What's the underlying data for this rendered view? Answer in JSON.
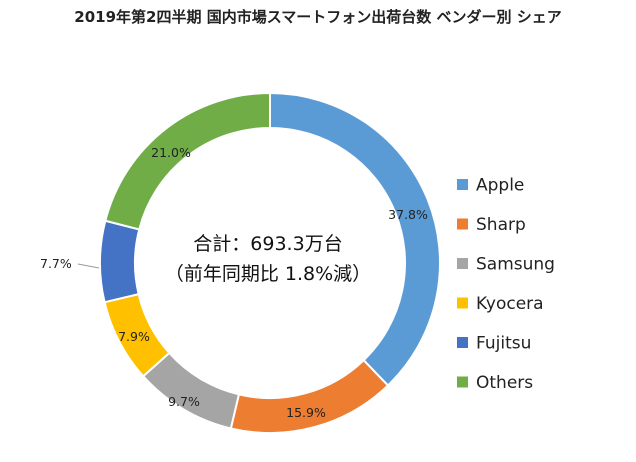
{
  "chart_data": {
    "type": "pie",
    "title": "2019年第2四半期 国内市場スマートフォン出荷台数 ベンダー別 シェア",
    "center_text": [
      "合計：693.3万台",
      "（前年同期比 1.8%減）"
    ],
    "unit": "%",
    "legend_position": "right",
    "slices": [
      {
        "name": "Apple",
        "value": 37.8,
        "label": "37.8%",
        "color": "#5B9BD5"
      },
      {
        "name": "Sharp",
        "value": 15.9,
        "label": "15.9%",
        "color": "#ED7D31"
      },
      {
        "name": "Samsung",
        "value": 9.7,
        "label": "9.7%",
        "color": "#A5A5A5"
      },
      {
        "name": "Kyocera",
        "value": 7.9,
        "label": "7.9%",
        "color": "#FFC000"
      },
      {
        "name": "Fujitsu",
        "value": 7.7,
        "label": "7.7%",
        "color": "#4472C4"
      },
      {
        "name": "Others",
        "value": 21.0,
        "label": "21.0%",
        "color": "#70AD47"
      }
    ]
  }
}
